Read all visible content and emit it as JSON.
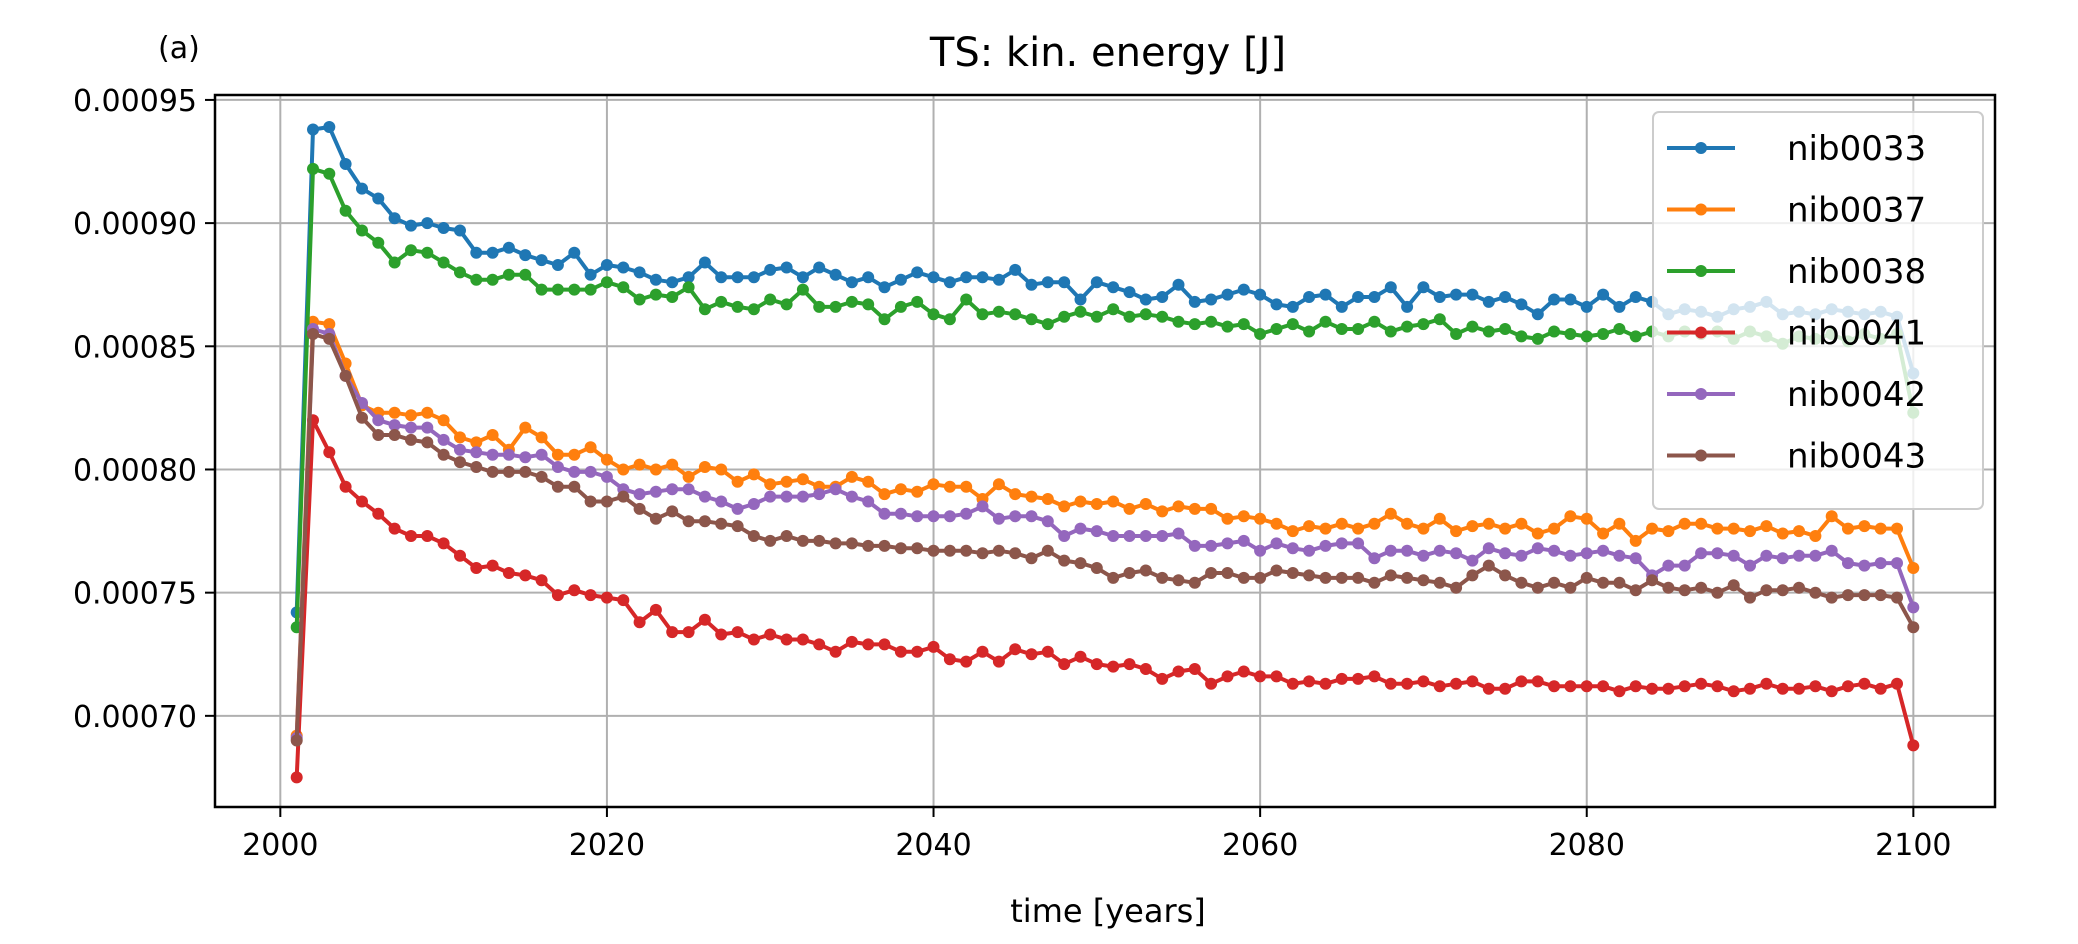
{
  "chart_data": {
    "type": "line",
    "panel_label": "(a)",
    "title": "TS: kin. energy [J]",
    "xlabel": "time [years]",
    "ylabel": "",
    "xlim": [
      1996,
      2105
    ],
    "ylim": [
      0.000663,
      0.000952
    ],
    "xticks": [
      2000,
      2020,
      2040,
      2060,
      2080,
      2100
    ],
    "xtick_labels": [
      "2000",
      "2020",
      "2040",
      "2060",
      "2080",
      "2100"
    ],
    "yticks": [
      0.0007,
      0.00075,
      0.0008,
      0.00085,
      0.0009,
      0.00095
    ],
    "ytick_labels": [
      "0.00070",
      "0.00075",
      "0.00080",
      "0.00085",
      "0.00090",
      "0.00095"
    ],
    "grid": true,
    "legend_position": "top-right",
    "x": [
      2001,
      2002,
      2003,
      2004,
      2005,
      2006,
      2007,
      2008,
      2009,
      2010,
      2011,
      2012,
      2013,
      2014,
      2015,
      2016,
      2017,
      2018,
      2019,
      2020,
      2021,
      2022,
      2023,
      2024,
      2025,
      2026,
      2027,
      2028,
      2029,
      2030,
      2031,
      2032,
      2033,
      2034,
      2035,
      2036,
      2037,
      2038,
      2039,
      2040,
      2041,
      2042,
      2043,
      2044,
      2045,
      2046,
      2047,
      2048,
      2049,
      2050,
      2051,
      2052,
      2053,
      2054,
      2055,
      2056,
      2057,
      2058,
      2059,
      2060,
      2061,
      2062,
      2063,
      2064,
      2065,
      2066,
      2067,
      2068,
      2069,
      2070,
      2071,
      2072,
      2073,
      2074,
      2075,
      2076,
      2077,
      2078,
      2079,
      2080,
      2081,
      2082,
      2083,
      2084,
      2085,
      2086,
      2087,
      2088,
      2089,
      2090,
      2091,
      2092,
      2093,
      2094,
      2095,
      2096,
      2097,
      2098,
      2099,
      2100
    ],
    "series": [
      {
        "name": "nib0033",
        "color": "#1f77b4",
        "values": [
          0.000742,
          0.000938,
          0.000939,
          0.000924,
          0.000914,
          0.00091,
          0.000902,
          0.000899,
          0.0009,
          0.000898,
          0.000897,
          0.000888,
          0.000888,
          0.00089,
          0.000887,
          0.000885,
          0.000883,
          0.000888,
          0.000879,
          0.000883,
          0.000882,
          0.00088,
          0.000877,
          0.000876,
          0.000878,
          0.000884,
          0.000878,
          0.000878,
          0.000878,
          0.000881,
          0.000882,
          0.000878,
          0.000882,
          0.000879,
          0.000876,
          0.000878,
          0.000874,
          0.000877,
          0.00088,
          0.000878,
          0.000876,
          0.000878,
          0.000878,
          0.000877,
          0.000881,
          0.000875,
          0.000876,
          0.000876,
          0.000869,
          0.000876,
          0.000874,
          0.000872,
          0.000869,
          0.00087,
          0.000875,
          0.000868,
          0.000869,
          0.000871,
          0.000873,
          0.000871,
          0.000867,
          0.000866,
          0.00087,
          0.000871,
          0.000866,
          0.00087,
          0.00087,
          0.000874,
          0.000866,
          0.000874,
          0.00087,
          0.000871,
          0.000871,
          0.000868,
          0.00087,
          0.000867,
          0.000863,
          0.000869,
          0.000869,
          0.000866,
          0.000871,
          0.000866,
          0.00087,
          0.000868,
          0.000863,
          0.000865,
          0.000864,
          0.000862,
          0.000865,
          0.000866,
          0.000868,
          0.000863,
          0.000864,
          0.000863,
          0.000865,
          0.000864,
          0.000863,
          0.000864,
          0.000862,
          0.000839
        ]
      },
      {
        "name": "nib0037",
        "color": "#ff7f0e",
        "values": [
          0.000692,
          0.00086,
          0.000859,
          0.000843,
          0.000826,
          0.000823,
          0.000823,
          0.000822,
          0.000823,
          0.00082,
          0.000813,
          0.000811,
          0.000814,
          0.000808,
          0.000817,
          0.000813,
          0.000806,
          0.000806,
          0.000809,
          0.000804,
          0.0008,
          0.000802,
          0.0008,
          0.000802,
          0.000797,
          0.000801,
          0.0008,
          0.000795,
          0.000798,
          0.000794,
          0.000795,
          0.000796,
          0.000793,
          0.000793,
          0.000797,
          0.000795,
          0.00079,
          0.000792,
          0.000791,
          0.000794,
          0.000793,
          0.000793,
          0.000788,
          0.000794,
          0.00079,
          0.000789,
          0.000788,
          0.000785,
          0.000787,
          0.000786,
          0.000787,
          0.000784,
          0.000786,
          0.000783,
          0.000785,
          0.000784,
          0.000784,
          0.00078,
          0.000781,
          0.00078,
          0.000778,
          0.000775,
          0.000777,
          0.000776,
          0.000778,
          0.000776,
          0.000778,
          0.000782,
          0.000778,
          0.000776,
          0.00078,
          0.000775,
          0.000777,
          0.000778,
          0.000776,
          0.000778,
          0.000774,
          0.000776,
          0.000781,
          0.00078,
          0.000774,
          0.000778,
          0.000771,
          0.000776,
          0.000775,
          0.000778,
          0.000778,
          0.000776,
          0.000776,
          0.000775,
          0.000777,
          0.000774,
          0.000775,
          0.000773,
          0.000781,
          0.000776,
          0.000777,
          0.000776,
          0.000776,
          0.00076
        ]
      },
      {
        "name": "nib0038",
        "color": "#2ca02c",
        "values": [
          0.000736,
          0.000922,
          0.00092,
          0.000905,
          0.000897,
          0.000892,
          0.000884,
          0.000889,
          0.000888,
          0.000884,
          0.00088,
          0.000877,
          0.000877,
          0.000879,
          0.000879,
          0.000873,
          0.000873,
          0.000873,
          0.000873,
          0.000876,
          0.000874,
          0.000869,
          0.000871,
          0.00087,
          0.000874,
          0.000865,
          0.000868,
          0.000866,
          0.000865,
          0.000869,
          0.000867,
          0.000873,
          0.000866,
          0.000866,
          0.000868,
          0.000867,
          0.000861,
          0.000866,
          0.000868,
          0.000863,
          0.000861,
          0.000869,
          0.000863,
          0.000864,
          0.000863,
          0.000861,
          0.000859,
          0.000862,
          0.000864,
          0.000862,
          0.000865,
          0.000862,
          0.000863,
          0.000862,
          0.00086,
          0.000859,
          0.00086,
          0.000858,
          0.000859,
          0.000855,
          0.000857,
          0.000859,
          0.000856,
          0.00086,
          0.000857,
          0.000857,
          0.00086,
          0.000856,
          0.000858,
          0.000859,
          0.000861,
          0.000855,
          0.000858,
          0.000856,
          0.000857,
          0.000854,
          0.000853,
          0.000856,
          0.000855,
          0.000854,
          0.000855,
          0.000857,
          0.000854,
          0.000856,
          0.000854,
          0.000856,
          0.000855,
          0.000856,
          0.000853,
          0.000856,
          0.000854,
          0.000851,
          0.000854,
          0.000853,
          0.000855,
          0.000852,
          0.000855,
          0.000853,
          0.000855,
          0.000823
        ]
      },
      {
        "name": "nib0041",
        "color": "#d62728",
        "values": [
          0.000675,
          0.00082,
          0.000807,
          0.000793,
          0.000787,
          0.000782,
          0.000776,
          0.000773,
          0.000773,
          0.00077,
          0.000765,
          0.00076,
          0.000761,
          0.000758,
          0.000757,
          0.000755,
          0.000749,
          0.000751,
          0.000749,
          0.000748,
          0.000747,
          0.000738,
          0.000743,
          0.000734,
          0.000734,
          0.000739,
          0.000733,
          0.000734,
          0.000731,
          0.000733,
          0.000731,
          0.000731,
          0.000729,
          0.000726,
          0.00073,
          0.000729,
          0.000729,
          0.000726,
          0.000726,
          0.000728,
          0.000723,
          0.000722,
          0.000726,
          0.000722,
          0.000727,
          0.000725,
          0.000726,
          0.000721,
          0.000724,
          0.000721,
          0.00072,
          0.000721,
          0.000719,
          0.000715,
          0.000718,
          0.000719,
          0.000713,
          0.000716,
          0.000718,
          0.000716,
          0.000716,
          0.000713,
          0.000714,
          0.000713,
          0.000715,
          0.000715,
          0.000716,
          0.000713,
          0.000713,
          0.000714,
          0.000712,
          0.000713,
          0.000714,
          0.000711,
          0.000711,
          0.000714,
          0.000714,
          0.000712,
          0.000712,
          0.000712,
          0.000712,
          0.00071,
          0.000712,
          0.000711,
          0.000711,
          0.000712,
          0.000713,
          0.000712,
          0.00071,
          0.000711,
          0.000713,
          0.000711,
          0.000711,
          0.000712,
          0.00071,
          0.000712,
          0.000713,
          0.000711,
          0.000713,
          0.000688
        ]
      },
      {
        "name": "nib0042",
        "color": "#9467bd",
        "values": [
          0.000691,
          0.000857,
          0.000855,
          0.000838,
          0.000827,
          0.00082,
          0.000818,
          0.000817,
          0.000817,
          0.000812,
          0.000808,
          0.000807,
          0.000806,
          0.000806,
          0.000805,
          0.000806,
          0.000801,
          0.000799,
          0.000799,
          0.000797,
          0.000792,
          0.00079,
          0.000791,
          0.000792,
          0.000792,
          0.000789,
          0.000787,
          0.000784,
          0.000786,
          0.000789,
          0.000789,
          0.000789,
          0.00079,
          0.000792,
          0.000789,
          0.000787,
          0.000782,
          0.000782,
          0.000781,
          0.000781,
          0.000781,
          0.000782,
          0.000785,
          0.00078,
          0.000781,
          0.000781,
          0.000779,
          0.000773,
          0.000776,
          0.000775,
          0.000773,
          0.000773,
          0.000773,
          0.000773,
          0.000774,
          0.000769,
          0.000769,
          0.00077,
          0.000771,
          0.000767,
          0.00077,
          0.000768,
          0.000767,
          0.000769,
          0.00077,
          0.00077,
          0.000764,
          0.000767,
          0.000767,
          0.000765,
          0.000767,
          0.000766,
          0.000763,
          0.000768,
          0.000766,
          0.000765,
          0.000768,
          0.000767,
          0.000765,
          0.000766,
          0.000767,
          0.000765,
          0.000764,
          0.000757,
          0.000761,
          0.000761,
          0.000766,
          0.000766,
          0.000765,
          0.000761,
          0.000765,
          0.000764,
          0.000765,
          0.000765,
          0.000767,
          0.000762,
          0.000761,
          0.000762,
          0.000762,
          0.000744
        ]
      },
      {
        "name": "nib0043",
        "color": "#8c564b",
        "values": [
          0.00069,
          0.000855,
          0.000853,
          0.000838,
          0.000821,
          0.000814,
          0.000814,
          0.000812,
          0.000811,
          0.000806,
          0.000803,
          0.000801,
          0.000799,
          0.000799,
          0.000799,
          0.000797,
          0.000793,
          0.000793,
          0.000787,
          0.000787,
          0.000789,
          0.000784,
          0.00078,
          0.000783,
          0.000779,
          0.000779,
          0.000778,
          0.000777,
          0.000773,
          0.000771,
          0.000773,
          0.000771,
          0.000771,
          0.00077,
          0.00077,
          0.000769,
          0.000769,
          0.000768,
          0.000768,
          0.000767,
          0.000767,
          0.000767,
          0.000766,
          0.000767,
          0.000766,
          0.000764,
          0.000767,
          0.000763,
          0.000762,
          0.00076,
          0.000756,
          0.000758,
          0.000759,
          0.000756,
          0.000755,
          0.000754,
          0.000758,
          0.000758,
          0.000756,
          0.000756,
          0.000759,
          0.000758,
          0.000757,
          0.000756,
          0.000756,
          0.000756,
          0.000754,
          0.000757,
          0.000756,
          0.000755,
          0.000754,
          0.000752,
          0.000757,
          0.000761,
          0.000757,
          0.000754,
          0.000752,
          0.000754,
          0.000752,
          0.000756,
          0.000754,
          0.000754,
          0.000751,
          0.000755,
          0.000752,
          0.000751,
          0.000752,
          0.00075,
          0.000753,
          0.000748,
          0.000751,
          0.000751,
          0.000752,
          0.00075,
          0.000748,
          0.000749,
          0.000749,
          0.000749,
          0.000748,
          0.000736
        ]
      }
    ]
  }
}
